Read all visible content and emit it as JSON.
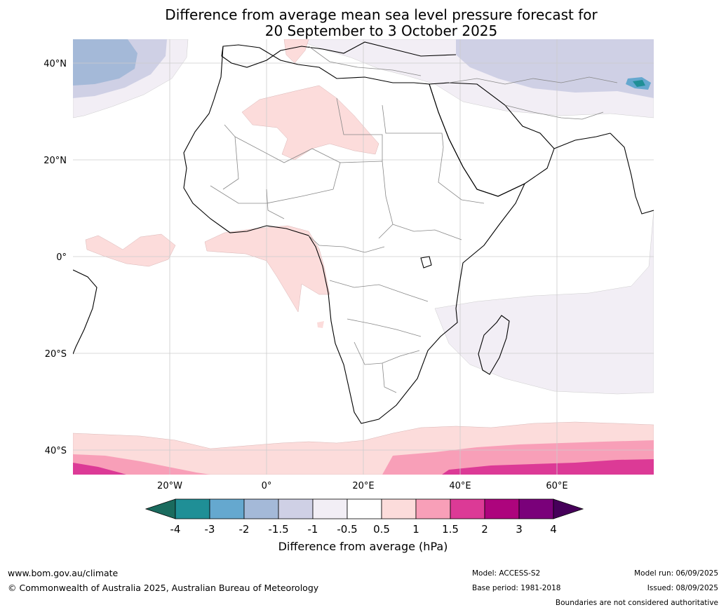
{
  "title_line1": "Difference from average mean sea level pressure forecast for",
  "title_line2": "20 September to 3 October 2025",
  "map": {
    "lat_labels": [
      "40°N",
      "20°N",
      "0°",
      "20°S",
      "40°S"
    ],
    "lon_labels": [
      "20°W",
      "0°",
      "20°E",
      "40°E",
      "60°E"
    ],
    "lat_values": [
      40,
      20,
      0,
      -20,
      -40
    ],
    "lon_values": [
      -20,
      0,
      20,
      40,
      60
    ],
    "extent": {
      "lon_min": -40,
      "lon_max": 80,
      "lat_min": -45,
      "lat_max": 45
    }
  },
  "colorbar": {
    "label": "Difference from average (hPa)",
    "tick_labels": [
      "-4",
      "-3",
      "-2",
      "-1.5",
      "-1",
      "-0.5",
      "0.5",
      "1",
      "1.5",
      "2",
      "3",
      "4"
    ],
    "colors": [
      "#1a6b5e",
      "#1f8f96",
      "#65a8cf",
      "#a4b9d8",
      "#cfd0e5",
      "#f2eef5",
      "#ffffff",
      "#fcdcdb",
      "#f89fb8",
      "#dc3a96",
      "#ad047d",
      "#7a017a",
      "#46005a"
    ]
  },
  "footer": {
    "website": "www.bom.gov.au/climate",
    "copyright": "© Commonwealth of Australia 2025, Australian Bureau of Meteorology",
    "model": "Model: ACCESS-S2",
    "base_period": "Base period: 1981-2018",
    "model_run": "Model run: 06/09/2025",
    "issued": "Issued: 08/09/2025",
    "disclaimer": "Boundaries are not considered authoritative"
  }
}
